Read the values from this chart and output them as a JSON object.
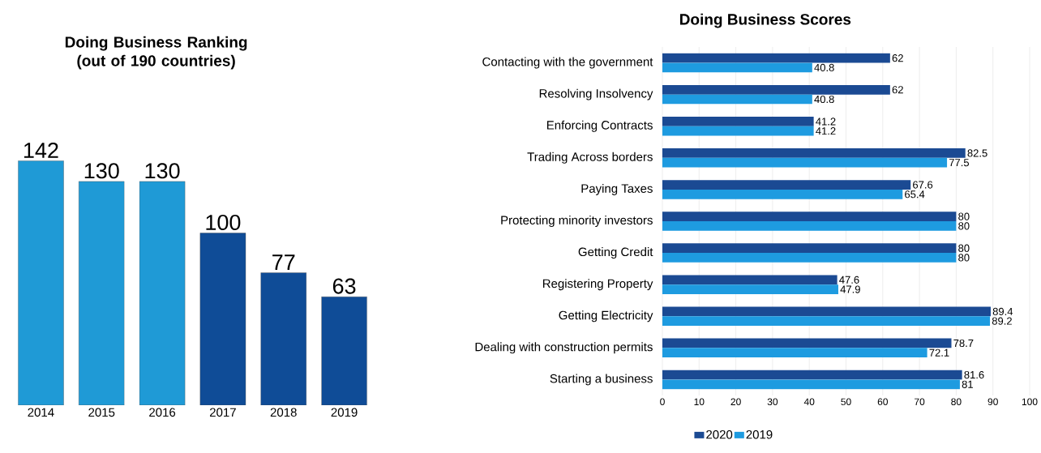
{
  "chart_data": [
    {
      "type": "bar",
      "title": "Doing Business Ranking (out of 190 countries)",
      "categories": [
        "2014",
        "2015",
        "2016",
        "2017",
        "2018",
        "2019"
      ],
      "values": [
        142,
        130,
        130,
        100,
        77,
        63
      ],
      "colors": [
        "#1f9ad6",
        "#1f9ad6",
        "#1f9ad6",
        "#0f4c97",
        "#0f4c97",
        "#0f4c97"
      ],
      "data_labels": true,
      "tick_labels": "x"
    },
    {
      "type": "bar",
      "orientation": "horizontal",
      "title": "Doing Business Scores",
      "categories": [
        "Contacting with the government",
        "Resolving Insolvency",
        "Enforcing Contracts",
        "Trading Across borders",
        "Paying Taxes",
        "Protecting minority investors",
        "Getting Credit",
        "Registering Property",
        "Getting Electricity",
        "Dealing with construction permits",
        "Starting a business"
      ],
      "series": [
        {
          "name": "2020",
          "color": "#1b4a93",
          "values": [
            62,
            62,
            41.2,
            82.5,
            67.6,
            80,
            80,
            47.6,
            89.4,
            78.7,
            81.6
          ]
        },
        {
          "name": "2019",
          "color": "#1e9be0",
          "values": [
            40.8,
            40.8,
            41.2,
            77.5,
            65.4,
            80,
            80,
            47.9,
            89.2,
            72.1,
            81
          ]
        }
      ],
      "xlim": [
        0,
        100
      ],
      "xticks": [
        0,
        10,
        20,
        30,
        40,
        50,
        60,
        70,
        80,
        90,
        100
      ],
      "grid": "x",
      "legend": "bottom",
      "data_labels": true
    }
  ]
}
